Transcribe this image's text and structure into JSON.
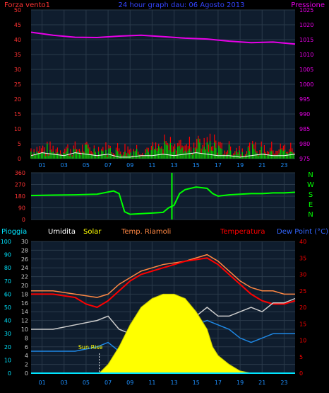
{
  "header": {
    "left_label": "Forza vento1",
    "title": "24 hour graph dau: 06 Agosto 2013",
    "right_label": "Pressione"
  },
  "bottom_header": {
    "rain": "Pioggia",
    "humidity": "Umidita",
    "solar": "Solar",
    "temp_indoor": "Temp. Riamoli",
    "temperature": "Temperatura",
    "dewpoint": "Dew Point (°C)"
  },
  "colors": {
    "pressure": "#e800e8",
    "wind_avg": "#00cc00",
    "wind_gust": "#ff0000",
    "wind_line": "#ffffff",
    "direction": "#00ff00",
    "temp": "#ff0000",
    "temp_indoor": "#ff8844",
    "humidity": "#cccccc",
    "dewpoint": "#1e88e5",
    "solar": "#ffff00",
    "rain": "#00e5ff",
    "axis_left": "#ff3333",
    "axis_right": "#e800e8",
    "axis_rain": "#00e5ff",
    "axis_temp": "#ff3333",
    "grid": "#2a3a4a",
    "bg": "#0f1d2e"
  },
  "annotations": {
    "sunrise": "Sun Rise"
  },
  "chart_data": [
    {
      "type": "line",
      "name": "wind-pressure",
      "x_ticks": [
        "01",
        "03",
        "05",
        "07",
        "09",
        "11",
        "13",
        "15",
        "17",
        "19",
        "21",
        "23"
      ],
      "y_left_ticks": [
        0,
        5,
        10,
        15,
        20,
        25,
        30,
        35,
        40,
        45,
        50
      ],
      "y_right_ticks": [
        975,
        980,
        985,
        990,
        995,
        1000,
        1005,
        1010,
        1015,
        1020,
        1025
      ],
      "ylim_left": [
        0,
        50
      ],
      "ylim_right": [
        975,
        1025
      ],
      "series": [
        {
          "key": "pressure",
          "axis": "right",
          "x": [
            0,
            2,
            4,
            6,
            8,
            10,
            12,
            14,
            16,
            18,
            20,
            22,
            24
          ],
          "values": [
            1017.5,
            1016.5,
            1015.8,
            1015.7,
            1016.2,
            1016.5,
            1016,
            1015.5,
            1015.2,
            1014.5,
            1014,
            1014.2,
            1013.5
          ]
        },
        {
          "key": "wind_line",
          "axis": "left",
          "x": [
            0,
            1,
            2,
            3,
            4,
            5,
            6,
            7,
            8,
            9,
            10,
            11,
            12,
            13,
            14,
            15,
            16,
            17,
            18,
            19,
            20,
            21,
            22,
            23,
            24
          ],
          "values": [
            1,
            2,
            1.5,
            1,
            2,
            1.5,
            1,
            1.5,
            0.5,
            0.5,
            1,
            1,
            1.5,
            1,
            1.5,
            2,
            1.5,
            1,
            1,
            0.5,
            1,
            1.5,
            1,
            1,
            1.5
          ]
        }
      ]
    },
    {
      "type": "scatter",
      "name": "wind-direction",
      "x_ticks": [
        "01",
        "03",
        "05",
        "07",
        "09",
        "11",
        "13",
        "15",
        "17",
        "19",
        "21",
        "23"
      ],
      "y_ticks": [
        0,
        90,
        180,
        270,
        360
      ],
      "y_right_labels": [
        "N",
        "W",
        "S",
        "E",
        "N"
      ],
      "ylim": [
        0,
        360
      ],
      "series": [
        {
          "key": "direction",
          "x": [
            0,
            2,
            4,
            6,
            7.5,
            8,
            8.5,
            9,
            10,
            11,
            12,
            12.5,
            13,
            13.5,
            14,
            15,
            16,
            16.5,
            17,
            18,
            19,
            20,
            21,
            22,
            23,
            24
          ],
          "values": [
            185,
            188,
            190,
            195,
            220,
            200,
            60,
            40,
            45,
            50,
            55,
            90,
            110,
            200,
            230,
            250,
            240,
            200,
            180,
            190,
            195,
            200,
            200,
            205,
            205,
            210
          ]
        }
      ]
    },
    {
      "type": "line",
      "name": "temp-humidity-solar",
      "x_ticks": [
        "01",
        "03",
        "05",
        "07",
        "09",
        "11",
        "13",
        "15",
        "17",
        "19",
        "21",
        "23"
      ],
      "y_rain_ticks": [
        0,
        10,
        20,
        30,
        40,
        50,
        60,
        70,
        80,
        90,
        100
      ],
      "y_humidity_ticks": [
        0,
        2,
        4,
        6,
        8,
        10,
        12,
        14,
        16,
        18,
        20,
        22,
        24,
        26,
        28,
        30
      ],
      "y_temp_ticks": [
        0,
        5,
        10,
        15,
        20,
        25,
        30,
        35,
        40
      ],
      "ylim_humidity": [
        0,
        30
      ],
      "ylim_temp": [
        0,
        40
      ],
      "series": [
        {
          "key": "temp_indoor",
          "axis": "temp",
          "x": [
            0,
            2,
            4,
            6,
            7,
            8,
            9,
            10,
            12,
            14,
            16,
            17,
            18,
            19,
            20,
            21,
            22,
            23,
            24
          ],
          "values": [
            25,
            25,
            24,
            23,
            24,
            27,
            29,
            31,
            33,
            34,
            36,
            34,
            31,
            28,
            26,
            25,
            25,
            24,
            24
          ]
        },
        {
          "key": "temp",
          "axis": "temp",
          "x": [
            0,
            2,
            4,
            5,
            6,
            7,
            8,
            9,
            10,
            12,
            14,
            16,
            17,
            18,
            19,
            20,
            21,
            22,
            23,
            24
          ],
          "values": [
            24,
            24,
            23,
            21,
            20,
            22,
            25,
            28,
            30,
            32,
            34,
            35,
            33,
            30,
            27,
            24,
            22,
            21,
            21,
            22
          ]
        },
        {
          "key": "humidity",
          "axis": "humidity",
          "x": [
            0,
            2,
            4,
            6,
            7,
            8,
            9,
            10,
            12,
            13,
            14,
            15,
            16,
            17,
            18,
            19,
            20,
            21,
            22,
            23,
            24
          ],
          "values": [
            10,
            10,
            11,
            12,
            13,
            10,
            9,
            11,
            13,
            12,
            11,
            13,
            15,
            13,
            13,
            14,
            15,
            14,
            16,
            16,
            17
          ]
        },
        {
          "key": "dewpoint",
          "axis": "humidity",
          "x": [
            0,
            2,
            4,
            6,
            7,
            8,
            9,
            10,
            12,
            14,
            16,
            17,
            18,
            19,
            20,
            21,
            22,
            23,
            24
          ],
          "values": [
            5,
            5,
            5,
            6,
            7,
            5,
            6,
            8,
            9,
            10,
            12,
            11,
            10,
            8,
            7,
            8,
            9,
            9,
            9
          ]
        },
        {
          "key": "solar",
          "axis": "humidity",
          "x": [
            6.2,
            7,
            8,
            9,
            10,
            11,
            12,
            13,
            14,
            15,
            16,
            16.5,
            17,
            18,
            19,
            20
          ],
          "values": [
            0,
            2,
            6,
            11,
            15,
            17,
            18,
            18,
            17,
            14,
            10,
            6,
            4,
            2,
            0.5,
            0
          ]
        },
        {
          "key": "rain",
          "axis": "rain",
          "x": [
            0,
            24
          ],
          "values": [
            0,
            0
          ]
        }
      ]
    }
  ]
}
